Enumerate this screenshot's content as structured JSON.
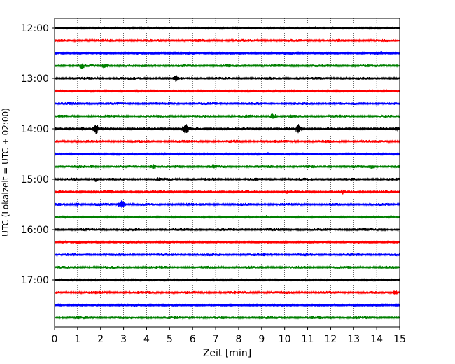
{
  "chart_data": {
    "type": "line",
    "title": "",
    "xlabel": "Zeit  [min]",
    "ylabel": "UTC (Lokalzeit = UTC + 02:00)",
    "xlim": [
      0,
      15
    ],
    "x_ticks": [
      "0",
      "1",
      "2",
      "3",
      "4",
      "5",
      "6",
      "7",
      "8",
      "9",
      "10",
      "11",
      "12",
      "13",
      "14",
      "15"
    ],
    "y_ticks": [
      "12:00",
      "13:00",
      "14:00",
      "15:00",
      "16:00",
      "17:00"
    ],
    "grid": "vertical dotted lines at each minute",
    "trace_interval_min": 15,
    "color_cycle": [
      "#000000",
      "#ff0000",
      "#0000ff",
      "#008000"
    ],
    "traces": [
      {
        "start": "12:00",
        "bursts": [
          {
            "t": 11.3,
            "a": 3
          }
        ]
      },
      {
        "start": "12:15",
        "bursts": []
      },
      {
        "start": "12:30",
        "bursts": [
          {
            "t": 14.2,
            "a": 3
          }
        ]
      },
      {
        "start": "12:45",
        "bursts": [
          {
            "t": 1.2,
            "a": 5
          },
          {
            "t": 2.2,
            "a": 5
          }
        ]
      },
      {
        "start": "13:00",
        "bursts": [
          {
            "t": 5.3,
            "a": 6
          }
        ]
      },
      {
        "start": "13:15",
        "bursts": []
      },
      {
        "start": "13:30",
        "bursts": []
      },
      {
        "start": "13:45",
        "bursts": [
          {
            "t": 9.5,
            "a": 5
          },
          {
            "t": 10.3,
            "a": 3
          }
        ]
      },
      {
        "start": "14:00",
        "bursts": [
          {
            "t": 1.2,
            "a": 3
          },
          {
            "t": 1.8,
            "a": 8
          },
          {
            "t": 5.7,
            "a": 8
          },
          {
            "t": 10.6,
            "a": 7
          },
          {
            "t": 14.9,
            "a": 4
          }
        ]
      },
      {
        "start": "14:15",
        "bursts": []
      },
      {
        "start": "14:30",
        "bursts": [
          {
            "t": 5.6,
            "a": 3
          },
          {
            "t": 9.3,
            "a": 3
          }
        ]
      },
      {
        "start": "14:45",
        "bursts": [
          {
            "t": 1.6,
            "a": 3
          },
          {
            "t": 4.3,
            "a": 4
          },
          {
            "t": 6.9,
            "a": 4
          },
          {
            "t": 13.8,
            "a": 4
          }
        ]
      },
      {
        "start": "15:00",
        "bursts": [
          {
            "t": 0.9,
            "a": 3
          },
          {
            "t": 1.8,
            "a": 4
          },
          {
            "t": 4.5,
            "a": 4
          },
          {
            "t": 6.8,
            "a": 3
          }
        ]
      },
      {
        "start": "15:15",
        "bursts": [
          {
            "t": 0.2,
            "a": 3
          },
          {
            "t": 10.1,
            "a": 3
          },
          {
            "t": 12.5,
            "a": 4
          }
        ]
      },
      {
        "start": "15:30",
        "bursts": [
          {
            "t": 1.0,
            "a": 3
          },
          {
            "t": 2.9,
            "a": 7
          },
          {
            "t": 5.8,
            "a": 3
          }
        ]
      },
      {
        "start": "15:45",
        "bursts": [
          {
            "t": 9.2,
            "a": 3
          }
        ]
      },
      {
        "start": "16:00",
        "bursts": []
      },
      {
        "start": "16:15",
        "bursts": []
      },
      {
        "start": "16:30",
        "bursts": []
      },
      {
        "start": "16:45",
        "bursts": []
      },
      {
        "start": "17:00",
        "bursts": [
          {
            "t": 6.2,
            "a": 3
          }
        ]
      },
      {
        "start": "17:15",
        "bursts": [
          {
            "t": 14.8,
            "a": 4
          }
        ]
      },
      {
        "start": "17:30",
        "bursts": []
      },
      {
        "start": "17:45",
        "bursts": []
      }
    ]
  }
}
